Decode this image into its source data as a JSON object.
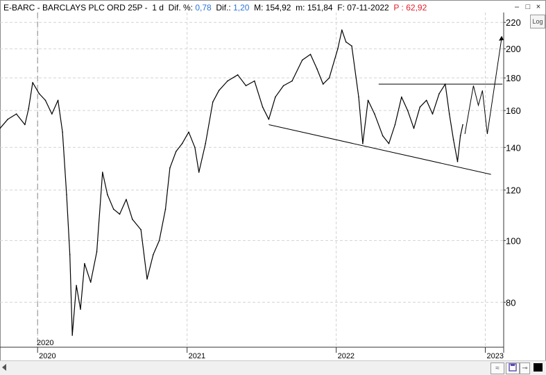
{
  "header": {
    "symbol": "E-BARC - BARCLAYS PLC ORD 25P -",
    "period": "1 d",
    "dif_pct_label": "Dif. %:",
    "dif_pct_value": "0,78",
    "dif_label": "Dif.:",
    "dif_value": "1,20",
    "max_label": "M:",
    "max_value": "154,92",
    "min_label": "m:",
    "min_value": "151,84",
    "date_label": "F:",
    "date_value": "07-11-2022",
    "p_label": "P :",
    "p_value": "62,92"
  },
  "controls": {
    "minimize": "–",
    "restore": "□",
    "close": "×",
    "log_button": "Log"
  },
  "colors": {
    "price_line": "#000000",
    "grid": "#d2d2d2",
    "accent_blue": "#2b77d8",
    "accent_red": "#e0202a"
  },
  "chart_data": {
    "type": "line",
    "scale": "log",
    "ylim": [
      68,
      228
    ],
    "y_ticks": [
      80,
      100,
      120,
      140,
      160,
      180,
      200,
      220
    ],
    "x_ticks": [
      "2020",
      "2021",
      "2022",
      "2023"
    ],
    "x_tick_dates": [
      "2020-01-01",
      "2021-01-01",
      "2022-01-01",
      "2023-01-01"
    ],
    "x_range": [
      "2019-10-01",
      "2023-02-15"
    ],
    "top_axis_marker": "2020",
    "grid": true,
    "series": [
      {
        "values": [
          [
            "2019-10-01",
            150
          ],
          [
            "2019-10-20",
            155
          ],
          [
            "2019-11-10",
            158
          ],
          [
            "2019-12-01",
            152
          ],
          [
            "2019-12-10",
            161
          ],
          [
            "2019-12-20",
            177
          ],
          [
            "2020-01-05",
            170
          ],
          [
            "2020-01-20",
            166
          ],
          [
            "2020-02-05",
            158
          ],
          [
            "2020-02-20",
            166
          ],
          [
            "2020-03-02",
            148
          ],
          [
            "2020-03-12",
            118
          ],
          [
            "2020-03-20",
            95
          ],
          [
            "2020-03-26",
            71
          ],
          [
            "2020-04-05",
            85
          ],
          [
            "2020-04-15",
            78
          ],
          [
            "2020-04-25",
            92
          ],
          [
            "2020-05-10",
            86
          ],
          [
            "2020-05-25",
            96
          ],
          [
            "2020-06-08",
            128
          ],
          [
            "2020-06-20",
            118
          ],
          [
            "2020-07-05",
            112
          ],
          [
            "2020-07-20",
            110
          ],
          [
            "2020-08-05",
            116
          ],
          [
            "2020-08-20",
            108
          ],
          [
            "2020-09-10",
            104
          ],
          [
            "2020-09-25",
            87
          ],
          [
            "2020-10-10",
            95
          ],
          [
            "2020-10-25",
            100
          ],
          [
            "2020-11-09",
            112
          ],
          [
            "2020-11-20",
            130
          ],
          [
            "2020-12-05",
            138
          ],
          [
            "2020-12-20",
            142
          ],
          [
            "2021-01-05",
            148
          ],
          [
            "2021-01-20",
            140
          ],
          [
            "2021-01-30",
            128
          ],
          [
            "2021-02-15",
            142
          ],
          [
            "2021-03-05",
            165
          ],
          [
            "2021-03-20",
            172
          ],
          [
            "2021-04-10",
            178
          ],
          [
            "2021-05-05",
            182
          ],
          [
            "2021-05-25",
            175
          ],
          [
            "2021-06-15",
            178
          ],
          [
            "2021-07-05",
            162
          ],
          [
            "2021-07-20",
            155
          ],
          [
            "2021-08-05",
            168
          ],
          [
            "2021-08-25",
            175
          ],
          [
            "2021-09-15",
            178
          ],
          [
            "2021-10-10",
            192
          ],
          [
            "2021-10-30",
            196
          ],
          [
            "2021-11-15",
            186
          ],
          [
            "2021-11-30",
            176
          ],
          [
            "2021-12-15",
            180
          ],
          [
            "2022-01-05",
            200
          ],
          [
            "2022-01-15",
            214
          ],
          [
            "2022-01-25",
            205
          ],
          [
            "2022-02-08",
            202
          ],
          [
            "2022-02-25",
            168
          ],
          [
            "2022-03-07",
            142
          ],
          [
            "2022-03-20",
            166
          ],
          [
            "2022-04-05",
            158
          ],
          [
            "2022-04-25",
            146
          ],
          [
            "2022-05-10",
            142
          ],
          [
            "2022-05-25",
            152
          ],
          [
            "2022-06-10",
            168
          ],
          [
            "2022-06-25",
            160
          ],
          [
            "2022-07-10",
            150
          ],
          [
            "2022-07-25",
            162
          ],
          [
            "2022-08-10",
            166
          ],
          [
            "2022-08-25",
            158
          ],
          [
            "2022-09-10",
            170
          ],
          [
            "2022-09-25",
            176
          ],
          [
            "2022-10-05",
            158
          ],
          [
            "2022-10-15",
            144
          ],
          [
            "2022-10-25",
            133
          ],
          [
            "2022-11-01",
            146
          ],
          [
            "2022-11-07",
            152
          ]
        ]
      }
    ],
    "annotations": [
      {
        "kind": "support_line",
        "points": [
          [
            "2021-07-20",
            152
          ],
          [
            "2023-01-15",
            127
          ]
        ]
      },
      {
        "kind": "resistance_line",
        "points": [
          [
            "2022-04-15",
            176
          ],
          [
            "2023-02-12",
            176
          ]
        ]
      },
      {
        "kind": "projection",
        "points": [
          [
            "2022-11-12",
            147
          ],
          [
            "2022-12-03",
            175
          ],
          [
            "2022-12-15",
            163
          ],
          [
            "2022-12-25",
            172
          ],
          [
            "2023-01-06",
            147
          ],
          [
            "2023-02-10",
            208
          ]
        ]
      }
    ]
  },
  "footer": {
    "save_icon": "save-icon",
    "pin_icon": "pin-icon"
  }
}
